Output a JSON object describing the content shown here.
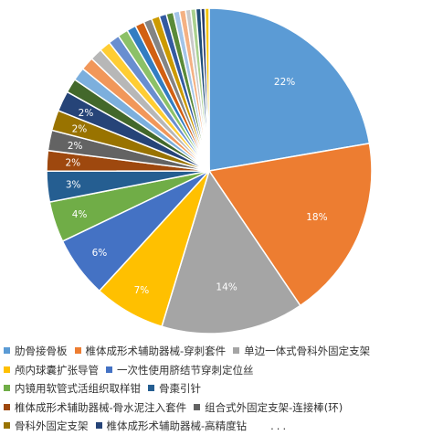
{
  "chart_data": {
    "type": "pie",
    "title": "",
    "slices": [
      {
        "label": "肋骨接骨板",
        "value": 22,
        "data_label": "22%",
        "color": "#5b9bd5"
      },
      {
        "label": "椎体成形术辅助器械-穿刺套件",
        "value": 18,
        "data_label": "18%",
        "color": "#ed7d31"
      },
      {
        "label": "单边一体式骨科外固定支架",
        "value": 14,
        "data_label": "14%",
        "color": "#a5a5a5"
      },
      {
        "label": "颅内球囊扩张导管",
        "value": 7,
        "data_label": "7%",
        "color": "#ffc000"
      },
      {
        "label": "一次性使用脐结节穿刺定位丝",
        "value": 6,
        "data_label": "6%",
        "color": "#4472c4"
      },
      {
        "label": "内镜用软管式活组织取样钳",
        "value": 4,
        "data_label": "4%",
        "color": "#70ad47"
      },
      {
        "label": "骨棗引针",
        "value": 3,
        "data_label": "3%",
        "color": "#255e91"
      },
      {
        "label": "椎体成形术辅助器械-骨水泥注入套件",
        "value": 2,
        "data_label": "2%",
        "color": "#9e480e"
      },
      {
        "label": "组合式外固定支架-连接棒(环)",
        "value": 2,
        "data_label": "2%",
        "color": "#636363"
      },
      {
        "label": "骨科外固定支架",
        "value": 2,
        "data_label": "2%",
        "color": "#997300"
      },
      {
        "label": "椎体成形术辅助器械-高精度钻",
        "value": 2,
        "data_label": "2%",
        "color": "#264478"
      },
      {
        "value": 1.4,
        "color": "#43682b"
      },
      {
        "value": 1.3,
        "color": "#7cafdd"
      },
      {
        "value": 1.3,
        "color": "#f1975a"
      },
      {
        "value": 1.2,
        "color": "#b7b7b7"
      },
      {
        "value": 1.1,
        "color": "#ffcd33"
      },
      {
        "value": 1.1,
        "color": "#698ed0"
      },
      {
        "value": 1.0,
        "color": "#8cc168"
      },
      {
        "value": 0.9,
        "color": "#327dc2"
      },
      {
        "value": 0.9,
        "color": "#d26012"
      },
      {
        "value": 0.8,
        "color": "#848484"
      },
      {
        "value": 0.8,
        "color": "#cc9a00"
      },
      {
        "value": 0.7,
        "color": "#335aa1"
      },
      {
        "value": 0.7,
        "color": "#5a8a39"
      },
      {
        "value": 0.6,
        "color": "#a3c4e8"
      },
      {
        "value": 0.6,
        "color": "#f4b183"
      },
      {
        "value": 0.5,
        "color": "#c9c9c9"
      },
      {
        "value": 0.5,
        "color": "#a9d18e"
      },
      {
        "value": 0.5,
        "color": "#1f4e79"
      },
      {
        "value": 0.4,
        "color": "#2e3f6e"
      },
      {
        "value": 0.4,
        "color": "#f5c200"
      }
    ],
    "legend_position": "bottom",
    "legend_rows": [
      [
        0,
        1,
        2
      ],
      [
        3,
        4
      ],
      [
        5,
        6
      ],
      [
        7,
        8
      ],
      [
        9,
        10
      ]
    ],
    "legend_more": "...",
    "start_angle_deg": 0,
    "direction": "clockwise"
  }
}
